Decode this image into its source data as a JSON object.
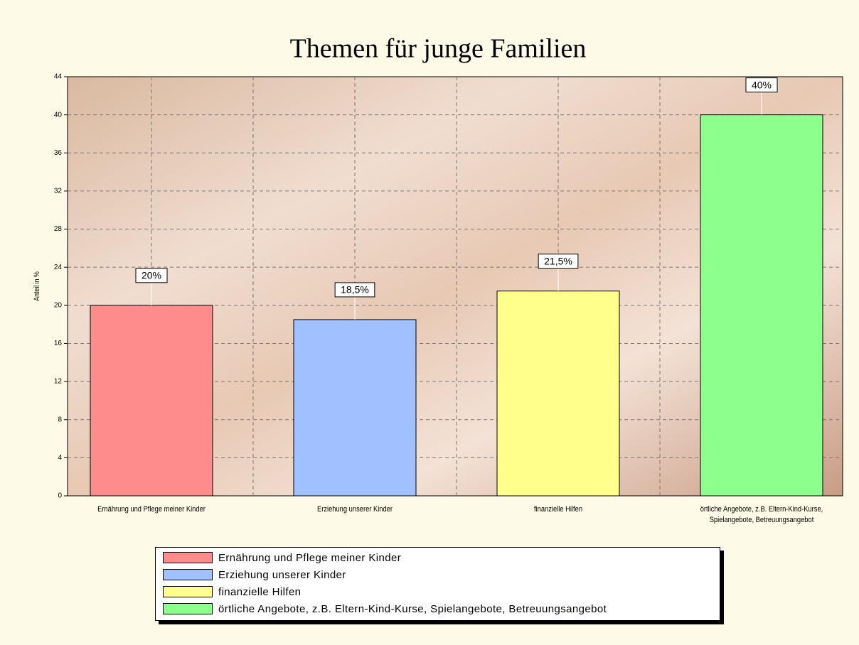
{
  "chart_data": {
    "type": "bar",
    "title": "Themen für junge Familien",
    "y_label": "Anteil in %",
    "categories": [
      "Ernährung und Pflege meiner Kinder",
      "Erziehung unserer Kinder",
      "finanzielle Hilfen",
      "örtliche Angebote, z.B. Eltern-Kind-Kurse, Spielangebote, Betreuungsangebot"
    ],
    "values": [
      20,
      18.5,
      21.5,
      40
    ],
    "value_labels": [
      "20%",
      "18,5%",
      "21,5%",
      "40%"
    ],
    "colors": [
      "#ff8c8c",
      "#a0c0ff",
      "#ffff8c",
      "#8cff8c"
    ],
    "ylim": [
      0,
      44
    ],
    "yticks": [
      0,
      4,
      8,
      12,
      16,
      20,
      24,
      28,
      32,
      36,
      40,
      44
    ],
    "grid": true,
    "legend": "bottom"
  }
}
